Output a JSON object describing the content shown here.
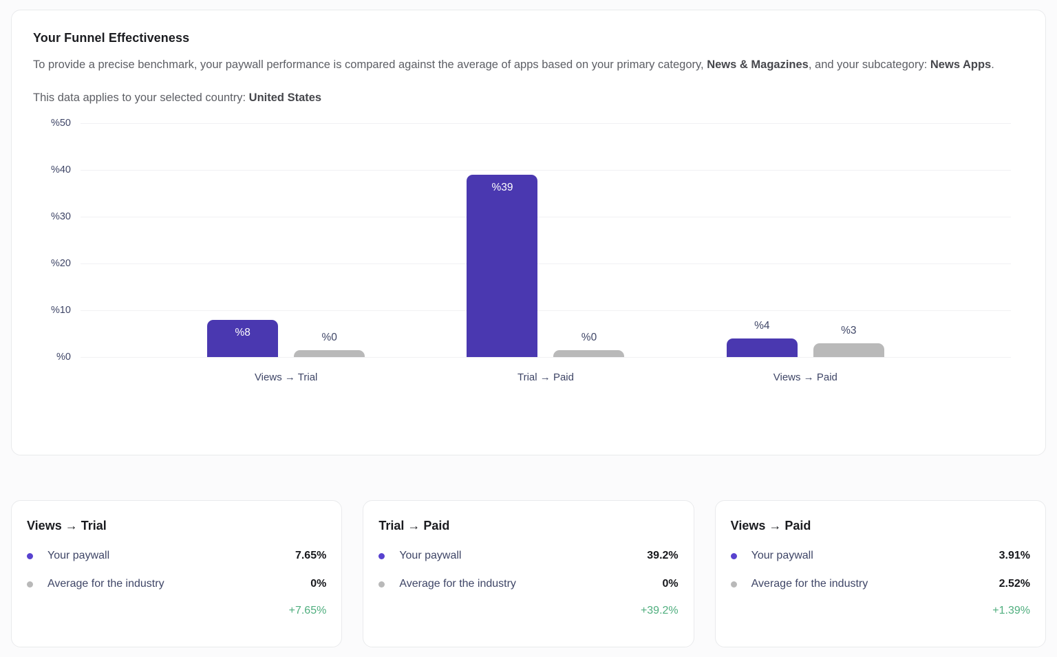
{
  "funnel_card": {
    "title": "Your Funnel Effectiveness",
    "description": {
      "text_1": "To provide a precise benchmark, your paywall performance is compared against the average of apps based on your primary category, ",
      "bold_1": "News & Magazines",
      "text_2": ", and your subcategory: ",
      "bold_2": "News Apps",
      "text_3": "."
    },
    "country_note": {
      "text_1": "This data applies to your selected country: ",
      "bold_1": "United States"
    }
  },
  "chart_data": {
    "type": "bar",
    "categories": [
      "Views → Trial",
      "Trial → Paid",
      "Views → Paid"
    ],
    "series": [
      {
        "name": "Your paywall",
        "color": "#4a38b0",
        "values": [
          8,
          39,
          4
        ],
        "labels": [
          "%8",
          "%39",
          "%4"
        ]
      },
      {
        "name": "Average for the industry",
        "color": "#b9b9b9",
        "values": [
          0,
          0,
          3
        ],
        "labels": [
          "%0",
          "%0",
          "%3"
        ]
      }
    ],
    "y_ticks": [
      "%50",
      "%40",
      "%30",
      "%20",
      "%10",
      "%0"
    ],
    "ylim": [
      0,
      50
    ],
    "grid": true,
    "legend_position": "below-in-cards",
    "value_prefix": "%"
  },
  "summary_cards": [
    {
      "title": "Views → Trial",
      "rows": [
        {
          "label": "Your paywall",
          "value": "7.65%"
        },
        {
          "label": "Average for the industry",
          "value": "0%"
        }
      ],
      "delta": "+7.65%"
    },
    {
      "title": "Trial → Paid",
      "rows": [
        {
          "label": "Your paywall",
          "value": "39.2%"
        },
        {
          "label": "Average for the industry",
          "value": "0%"
        }
      ],
      "delta": "+39.2%"
    },
    {
      "title": "Views → Paid",
      "rows": [
        {
          "label": "Your paywall",
          "value": "3.91%"
        },
        {
          "label": "Average for the industry",
          "value": "2.52%"
        }
      ],
      "delta": "+1.39%"
    }
  ],
  "colors": {
    "primary": "#4a38b0",
    "industry_gray": "#b9b9b9",
    "positive_green": "#4fae7e",
    "axis_text": "#3e4566",
    "gridline": "#f1f1f3"
  }
}
